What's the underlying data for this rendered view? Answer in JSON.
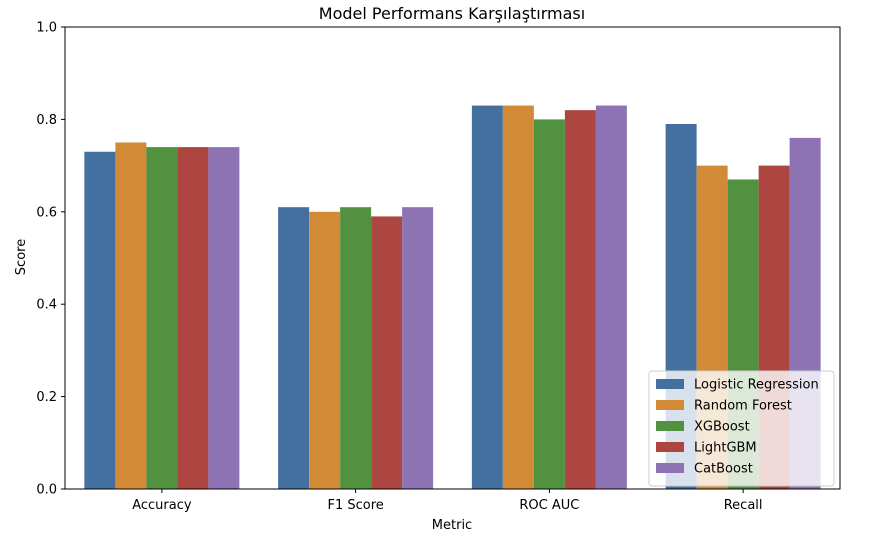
{
  "chart_data": {
    "type": "bar",
    "title": "Model Performans Karşılaştırması",
    "xlabel": "Metric",
    "ylabel": "Score",
    "ylim": [
      0,
      1.0
    ],
    "yticks": [
      "0.0",
      "0.2",
      "0.4",
      "0.6",
      "0.8",
      "1.0"
    ],
    "ytick_values": [
      0,
      0.2,
      0.4,
      0.6,
      0.8,
      1.0
    ],
    "categories": [
      "Accuracy",
      "F1 Score",
      "ROC AUC",
      "Recall"
    ],
    "series": [
      {
        "name": "Logistic Regression",
        "color": "#4470a0",
        "values": [
          0.73,
          0.61,
          0.83,
          0.79
        ]
      },
      {
        "name": "Random Forest",
        "color": "#d38a37",
        "values": [
          0.75,
          0.6,
          0.83,
          0.7
        ]
      },
      {
        "name": "XGBoost",
        "color": "#519140",
        "values": [
          0.74,
          0.61,
          0.8,
          0.67
        ]
      },
      {
        "name": "LightGBM",
        "color": "#ad4540",
        "values": [
          0.74,
          0.59,
          0.82,
          0.7
        ]
      },
      {
        "name": "CatBoost",
        "color": "#8d73b4",
        "values": [
          0.74,
          0.61,
          0.83,
          0.76
        ]
      }
    ],
    "grid": false,
    "legend_position": "bottom-right"
  }
}
